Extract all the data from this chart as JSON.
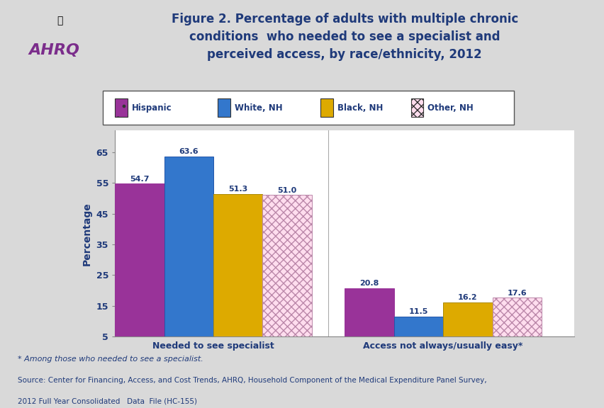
{
  "title": "Figure 2. Percentage of adults with multiple chronic\nconditions  who needed to see a specialist and\nperceived access, by race/ethnicity, 2012",
  "ylabel": "Percentage",
  "groups": [
    "Needed to see specialist",
    "Access not always/usually easy*"
  ],
  "categories": [
    "Hispanic",
    "White, NH",
    "Black, NH",
    "Other, NH"
  ],
  "values": [
    [
      54.7,
      63.6,
      51.3,
      51.0
    ],
    [
      20.8,
      11.5,
      16.2,
      17.6
    ]
  ],
  "bar_colors": [
    "#993399",
    "#3366CC",
    "#CCAA00",
    "#FFCCEE"
  ],
  "bar_hatch_colors": [
    "#993399",
    "#3366CC",
    "#CCAA00",
    "#BB88AA"
  ],
  "ylim": [
    5,
    72
  ],
  "yticks": [
    5,
    15,
    25,
    35,
    45,
    55,
    65
  ],
  "bar_width": 0.15,
  "title_color": "#1F3A7A",
  "label_color": "#1F3A7A",
  "axis_label_color": "#1F3A7A",
  "background_color": "#D9D9D9",
  "plot_bg_color": "#FFFFFF",
  "footer_line1": "* Among those who needed to see a specialist.",
  "footer_line2": "Source: Center for Financing, Access, and Cost Trends, AHRQ, Household Component of the Medical Expenditure Panel Survey,",
  "footer_line3": "2012 Full Year Consolidated   Data  File (HC-155)"
}
